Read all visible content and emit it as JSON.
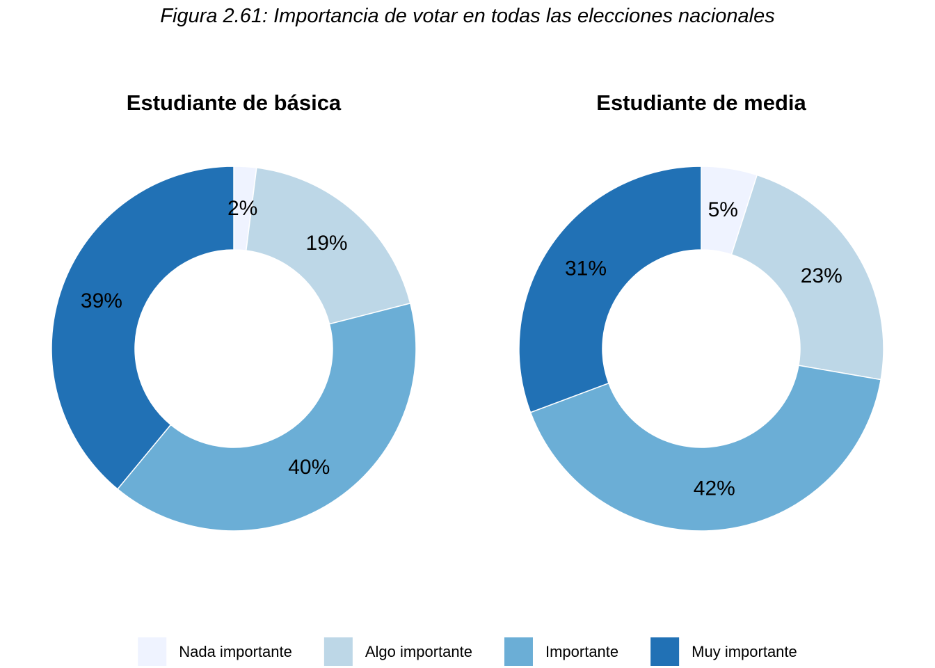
{
  "figure_title": "Figura 2.61: Importancia de votar en todas las elecciones nacionales",
  "colors": {
    "Nada importante": "#eff3ff",
    "Algo importante": "#bdd7e7",
    "Importante": "#6baed6",
    "Muy importante": "#2171b5"
  },
  "legend": {
    "position": "bottom",
    "items": [
      "Nada importante",
      "Algo importante",
      "Importante",
      "Muy importante"
    ]
  },
  "chart_data": [
    {
      "type": "pie",
      "variant": "donut",
      "title": "Estudiante de básica",
      "categories": [
        "Nada importante",
        "Algo importante",
        "Importante",
        "Muy importante"
      ],
      "values": [
        2,
        19,
        40,
        39
      ],
      "labels": [
        "2%",
        "19%",
        "40%",
        "39%"
      ]
    },
    {
      "type": "pie",
      "variant": "donut",
      "title": "Estudiante de media",
      "categories": [
        "Nada importante",
        "Algo importante",
        "Importante",
        "Muy importante"
      ],
      "values": [
        5,
        23,
        42,
        31
      ],
      "labels": [
        "5%",
        "23%",
        "42%",
        "31%"
      ]
    }
  ]
}
